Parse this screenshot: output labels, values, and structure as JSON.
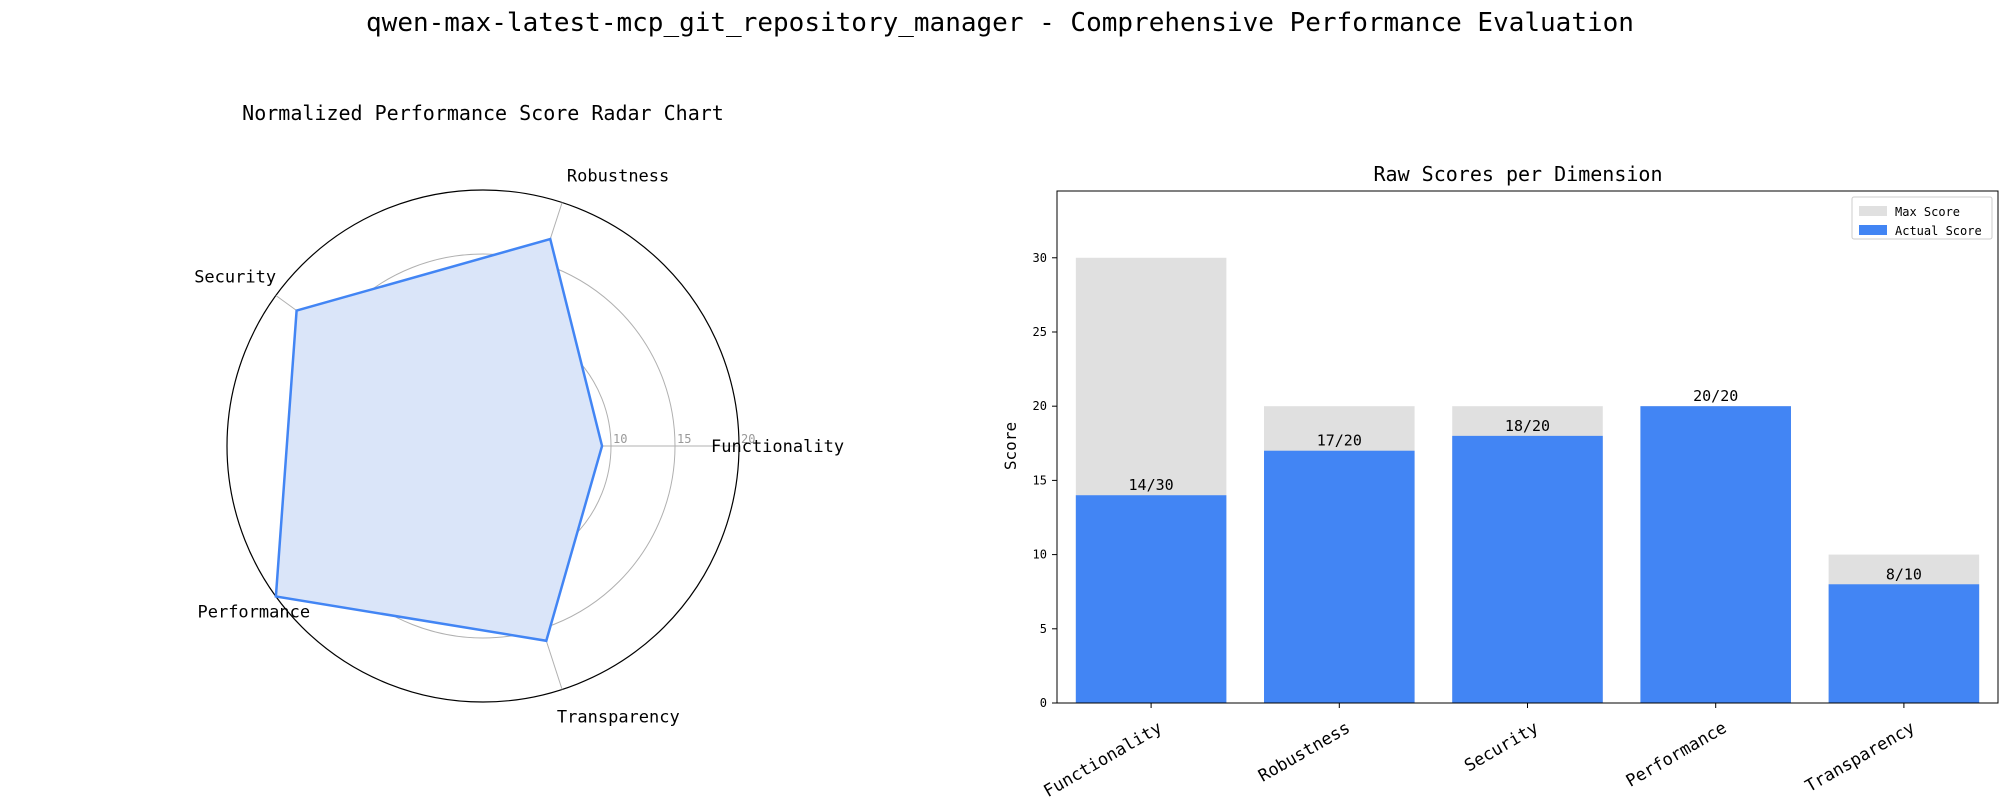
{
  "figure": {
    "title": "qwen-max-latest-mcp_git_repository_manager - Comprehensive Performance Evaluation"
  },
  "colors": {
    "accent": "#4285f4",
    "fill": "#dae5f9",
    "max_bar": "#e0e0e0",
    "grid": "#b0b0b0"
  },
  "chart_data": [
    {
      "type": "radar",
      "title": "Normalized Performance Score Radar Chart",
      "axes": [
        "Functionality",
        "Robustness",
        "Security",
        "Performance",
        "Transparency"
      ],
      "values": [
        9.3,
        17.0,
        18.0,
        20.0,
        16.0
      ],
      "rlim": [
        0,
        20
      ],
      "rticks": [
        5,
        10,
        15,
        20
      ],
      "grid": true
    },
    {
      "type": "bar",
      "title": "Raw Scores per Dimension",
      "categories": [
        "Functionality",
        "Robustness",
        "Security",
        "Performance",
        "Transparency"
      ],
      "series": [
        {
          "name": "Max Score",
          "values": [
            30,
            20,
            20,
            20,
            10
          ]
        },
        {
          "name": "Actual Score",
          "values": [
            14,
            17,
            18,
            20,
            8
          ]
        }
      ],
      "data_labels": [
        "14/30",
        "17/20",
        "18/20",
        "20/20",
        "8/10"
      ],
      "ylabel": "Score",
      "xlabel": "",
      "ylim": [
        0,
        34.5
      ],
      "yticks": [
        0,
        5,
        10,
        15,
        20,
        25,
        30
      ],
      "legend": "top-right",
      "grid": false
    }
  ]
}
